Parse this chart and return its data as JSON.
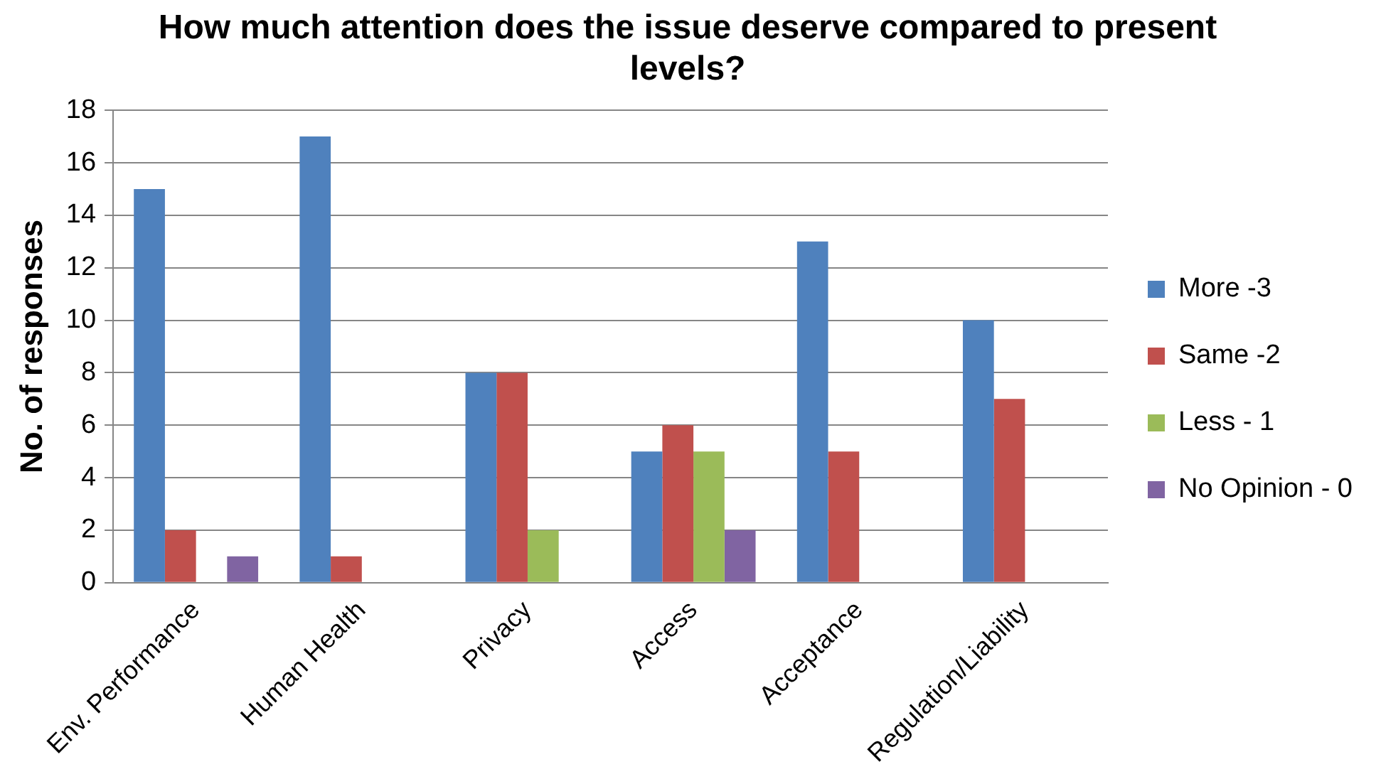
{
  "chart_data": {
    "type": "bar",
    "title": "How much attention does the issue deserve compared to present levels?",
    "ylabel": "No. of responses",
    "categories": [
      "Env. Performance",
      "Human Health",
      "Privacy",
      "Access",
      "Acceptance",
      "Regulation/Liability"
    ],
    "series": [
      {
        "name": "More -3",
        "color": "#4f81bd",
        "values": [
          15,
          17,
          8,
          5,
          13,
          10
        ]
      },
      {
        "name": "Same -2",
        "color": "#c0504d",
        "values": [
          2,
          1,
          8,
          6,
          5,
          7
        ]
      },
      {
        "name": "Less - 1",
        "color": "#9bbb59",
        "values": [
          0,
          0,
          2,
          5,
          0,
          0
        ]
      },
      {
        "name": "No Opinion - 0",
        "color": "#8064a2",
        "values": [
          1,
          0,
          0,
          2,
          0,
          0
        ]
      }
    ],
    "ylim": [
      0,
      18
    ],
    "yticks": [
      0,
      2,
      4,
      6,
      8,
      10,
      12,
      14,
      16,
      18
    ],
    "grid": "y",
    "legend": "right"
  }
}
